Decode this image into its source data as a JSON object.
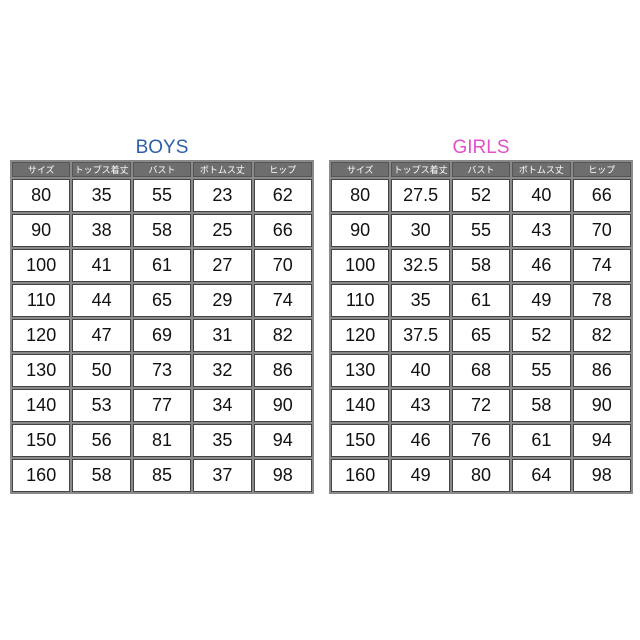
{
  "tables": [
    {
      "title": "BOYS",
      "header": [
        "サイズ",
        "トップス着丈",
        "バスト",
        "ボトムス丈",
        "ヒップ"
      ],
      "rows": [
        [
          "80",
          "35",
          "55",
          "23",
          "62"
        ],
        [
          "90",
          "38",
          "58",
          "25",
          "66"
        ],
        [
          "100",
          "41",
          "61",
          "27",
          "70"
        ],
        [
          "110",
          "44",
          "65",
          "29",
          "74"
        ],
        [
          "120",
          "47",
          "69",
          "31",
          "82"
        ],
        [
          "130",
          "50",
          "73",
          "32",
          "86"
        ],
        [
          "140",
          "53",
          "77",
          "34",
          "90"
        ],
        [
          "150",
          "56",
          "81",
          "35",
          "94"
        ],
        [
          "160",
          "58",
          "85",
          "37",
          "98"
        ]
      ]
    },
    {
      "title": "GIRLS",
      "header": [
        "サイズ",
        "トップス着丈",
        "バスト",
        "ボトムス丈",
        "ヒップ"
      ],
      "rows": [
        [
          "80",
          "27.5",
          "52",
          "40",
          "66"
        ],
        [
          "90",
          "30",
          "55",
          "43",
          "70"
        ],
        [
          "100",
          "32.5",
          "58",
          "46",
          "74"
        ],
        [
          "110",
          "35",
          "61",
          "49",
          "78"
        ],
        [
          "120",
          "37.5",
          "65",
          "52",
          "82"
        ],
        [
          "130",
          "40",
          "68",
          "55",
          "86"
        ],
        [
          "140",
          "43",
          "72",
          "58",
          "90"
        ],
        [
          "150",
          "46",
          "76",
          "61",
          "94"
        ],
        [
          "160",
          "49",
          "80",
          "64",
          "98"
        ]
      ]
    }
  ]
}
